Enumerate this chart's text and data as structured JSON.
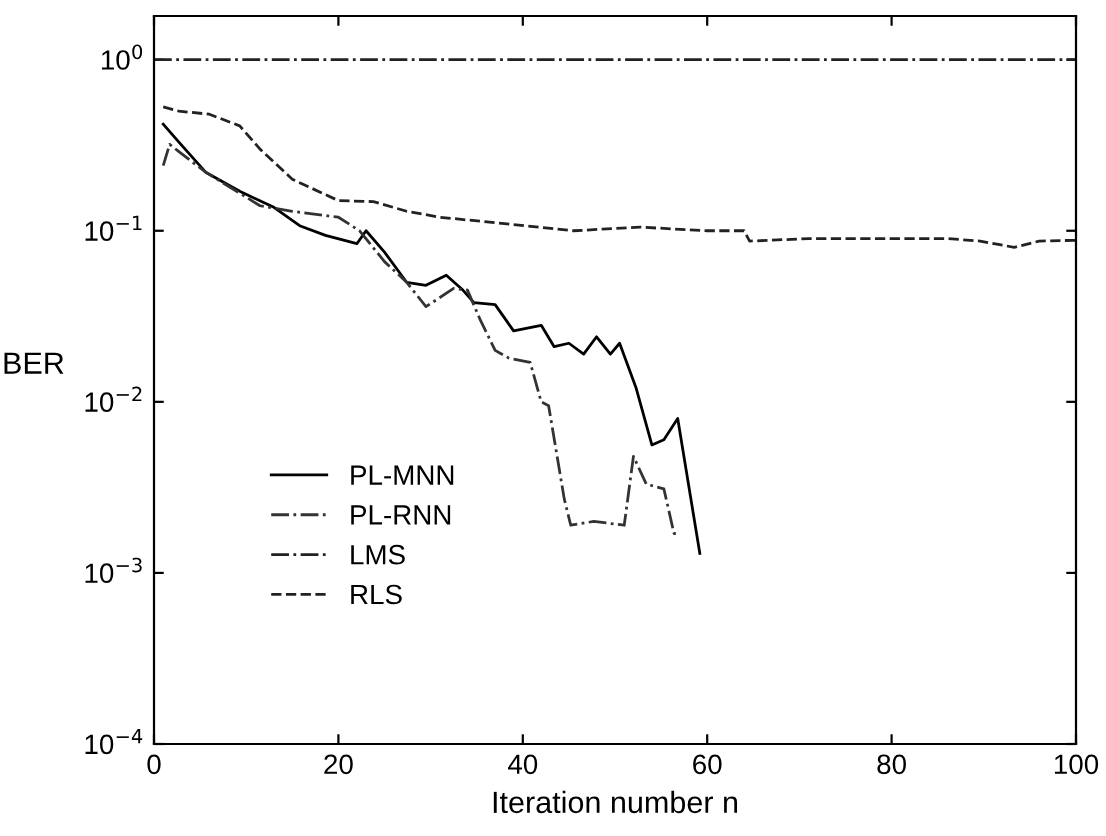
{
  "chart_data": {
    "type": "line",
    "xlabel": "Iteration number n",
    "ylabel": "BER",
    "log": "y",
    "xlim": [
      0,
      100
    ],
    "xticks": [
      0,
      20,
      40,
      60,
      80,
      100
    ],
    "ylim": [
      0.0001,
      1.8
    ],
    "yticks": [
      {
        "value": 0.0001,
        "label": "10$^{−4}$"
      },
      {
        "value": 0.001,
        "label": "10$^{−3}$"
      },
      {
        "value": 0.01,
        "label": "10$^{−2}$"
      },
      {
        "value": 0.1,
        "label": "10$^{−1}$"
      },
      {
        "value": 1,
        "label": "10$^{0}$"
      }
    ],
    "grid": false,
    "legend": "bottom left",
    "marker": "none",
    "series": [
      {
        "name": "PL-MNN",
        "color": "#000000",
        "line_style": "solid",
        "x": [
          1,
          2.7,
          5.6,
          9.3,
          13,
          15.8,
          18.6,
          22,
          23,
          25,
          27.4,
          29.5,
          31.7,
          33.5,
          34.7,
          37,
          39,
          42,
          43.4,
          45,
          46.6,
          48,
          49.5,
          50.5,
          52.3,
          54,
          55.3,
          56.8,
          59.2
        ],
        "values": [
          0.42,
          0.33,
          0.22,
          0.17,
          0.137,
          0.107,
          0.094,
          0.084,
          0.1,
          0.075,
          0.05,
          0.048,
          0.055,
          0.045,
          0.038,
          0.037,
          0.026,
          0.028,
          0.021,
          0.022,
          0.019,
          0.024,
          0.019,
          0.022,
          0.012,
          0.0056,
          0.006,
          0.008,
          0.0013
        ]
      },
      {
        "name": "PL-RNN",
        "color": "#333333",
        "line_style": "dashdot",
        "x": [
          1,
          1.7,
          2.7,
          5.6,
          11.5,
          15,
          20,
          22.3,
          25,
          27.4,
          29.5,
          32.5,
          34,
          35.4,
          37,
          38.5,
          40.8,
          42,
          42.8,
          44.5,
          45.2,
          47.7,
          51,
          52,
          53.4,
          55.3,
          56.4,
          57
        ],
        "values": [
          0.24,
          0.32,
          0.29,
          0.22,
          0.14,
          0.13,
          0.12,
          0.1,
          0.066,
          0.05,
          0.036,
          0.046,
          0.045,
          0.03,
          0.02,
          0.018,
          0.017,
          0.01,
          0.0095,
          0.0027,
          0.0019,
          0.002,
          0.0019,
          0.0048,
          0.0033,
          0.0031,
          0.0017,
          0.0017
        ]
      },
      {
        "name": "LMS",
        "color": "#222222",
        "line_style": "dashdot",
        "x": [
          0,
          100
        ],
        "values": [
          1,
          1
        ]
      },
      {
        "name": "RLS",
        "color": "#222222",
        "line_style": "dashed",
        "x": [
          1,
          2.7,
          6,
          9.3,
          11.5,
          15,
          20,
          23.8,
          27.4,
          31,
          38,
          45.5,
          52.7,
          60,
          64,
          64.6,
          71,
          78.5,
          86,
          89.6,
          93.3,
          96,
          100
        ],
        "values": [
          0.53,
          0.5,
          0.48,
          0.41,
          0.3,
          0.2,
          0.15,
          0.148,
          0.13,
          0.12,
          0.11,
          0.1,
          0.105,
          0.1,
          0.1,
          0.087,
          0.09,
          0.09,
          0.09,
          0.087,
          0.08,
          0.087,
          0.088
        ]
      }
    ]
  }
}
